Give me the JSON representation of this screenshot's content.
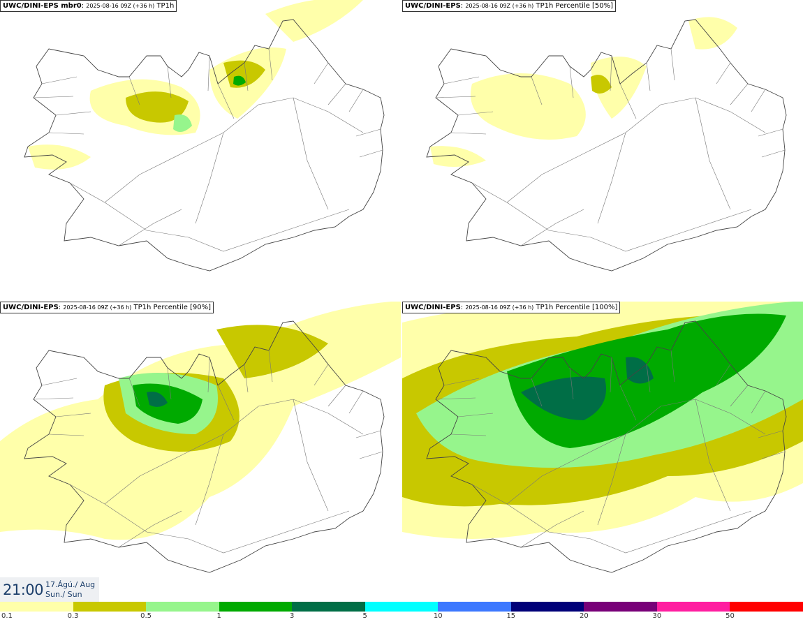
{
  "panels": [
    {
      "model": "UWC/DINI-EPS",
      "member": " mbr0",
      "run": "2025-08-16 09Z (+36 h)",
      "field": "TP1h",
      "intensity": 1
    },
    {
      "model": "UWC/DINI-EPS",
      "member": "",
      "run": "2025-08-16 09Z (+36 h)",
      "field": "TP1h Percentile [50%]",
      "intensity": 0
    },
    {
      "model": "UWC/DINI-EPS",
      "member": "",
      "run": "2025-08-16 09Z (+36 h)",
      "field": "TP1h Percentile [90%]",
      "intensity": 2
    },
    {
      "model": "UWC/DINI-EPS",
      "member": "",
      "run": "2025-08-16 09Z (+36 h)",
      "field": "TP1h Percentile [100%]",
      "intensity": 3
    }
  ],
  "valid_time": {
    "time": "21:00",
    "date_line1": "17.Ágú./ Aug",
    "date_line2": "Sun./ Sun"
  },
  "legend": {
    "colors": [
      "#ffffaa",
      "#c8c800",
      "#96f58c",
      "#00aa00",
      "#006e46",
      "#00ffff",
      "#3c78ff",
      "#000078",
      "#780078",
      "#ff1ea0",
      "#ff0000"
    ],
    "labels": [
      "0.1",
      "0.3",
      "0.5",
      "1",
      "3",
      "5",
      "10",
      "15",
      "20",
      "30",
      "50"
    ]
  }
}
